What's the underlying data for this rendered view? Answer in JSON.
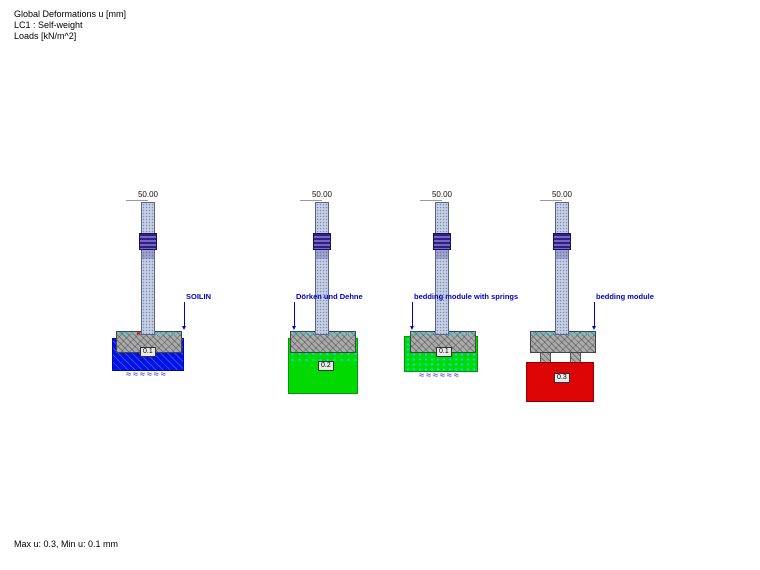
{
  "header": {
    "lines": [
      "Global Deformations u [mm]",
      "LC1 : Self-weight",
      "Loads [kN/m^2]"
    ]
  },
  "footer": {
    "summary": "Max u: 0.3, Min u: 0.1 mm"
  },
  "models": [
    {
      "dim": "50.00",
      "label": "SOILIN",
      "value": "0.1",
      "soil": "blue"
    },
    {
      "dim": "50.00",
      "label": "Dörken und Dehne",
      "value": "0.2",
      "soil": "green"
    },
    {
      "dim": "50.00",
      "label": "bedding module with springs",
      "value": "0.1",
      "soil": "green"
    },
    {
      "dim": "50.00",
      "label": "bedding module",
      "value": "0.3",
      "soil": "red"
    }
  ],
  "decor": {
    "wave_row": "≈≈≈≈≈≈",
    "red_marker": "×"
  },
  "colors": {
    "annotation_blue": "#0000c8",
    "soil_blue": "#0013e6",
    "soil_green": "#00da00",
    "soil_red": "#dc0404",
    "spring_cyan": "#00dcec",
    "column_fill": "#c6d0e4",
    "band_purple": "#2c1f86",
    "foundation_gray": "#ababab"
  }
}
